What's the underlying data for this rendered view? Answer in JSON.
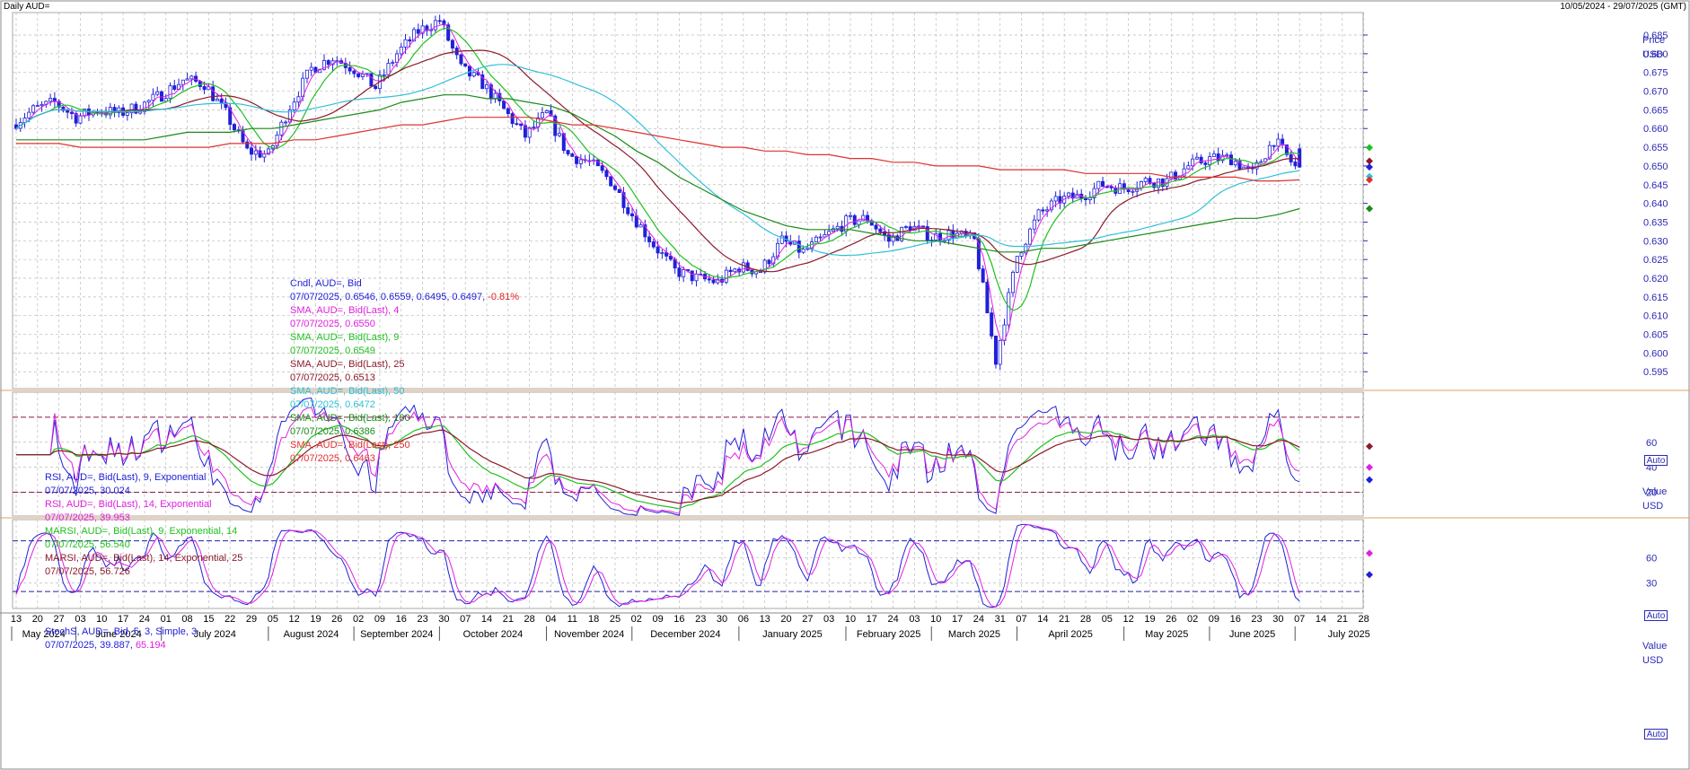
{
  "header": {
    "title": "Daily AUD=",
    "range": "10/05/2024 - 29/07/2025 (GMT)"
  },
  "colors": {
    "candle": "#2020d8",
    "sma4": "#e020e0",
    "sma9": "#20c020",
    "sma25": "#8b1a2a",
    "sma50": "#30c0d8",
    "sma100": "#1a8a1a",
    "sma250": "#e03030",
    "rsi9": "#2020d8",
    "rsi14": "#e020e0",
    "marsi9": "#20c020",
    "marsi14": "#8b1a2a",
    "stochK": "#2020d8",
    "stochD": "#e020e0",
    "grid": "#bbbbbb",
    "axis": "#2a2ab4"
  },
  "legend_price": [
    {
      "label": "Cndl, AUD=, Bid",
      "value": "07/07/2025, 0.6546, 0.6559, 0.6495, 0.6497,",
      "change": "-0.81%",
      "color": "#2020d8"
    },
    {
      "label": "SMA, AUD=, Bid(Last),  4",
      "value": "07/07/2025, 0.6550",
      "color": "#e020e0"
    },
    {
      "label": "SMA, AUD=, Bid(Last),  9",
      "value": "07/07/2025, 0.6549",
      "color": "#20c020"
    },
    {
      "label": "SMA, AUD=, Bid(Last),  25",
      "value": "07/07/2025, 0.6513",
      "color": "#8b1a2a"
    },
    {
      "label": "SMA, AUD=, Bid(Last),  50",
      "value": "07/07/2025, 0.6472",
      "color": "#30c0d8"
    },
    {
      "label": "SMA, AUD=, Bid(Last),  100",
      "value": "07/07/2025, 0.6386",
      "color": "#1a8a1a"
    },
    {
      "label": "SMA, AUD=, Bid(Last),  250",
      "value": "07/07/2025, 0.6463",
      "color": "#e03030"
    }
  ],
  "legend_rsi": [
    {
      "label": "RSI, AUD=, Bid(Last),  9, Exponential",
      "value": "07/07/2025, 30.024",
      "color": "#2020d8"
    },
    {
      "label": "RSI, AUD=, Bid(Last),  14, Exponential",
      "value": "07/07/2025, 39.953",
      "color": "#e020e0"
    },
    {
      "label": "MARSI, AUD=, Bid(Last),  9, Exponential, 14",
      "value": "07/07/2025, 56.540",
      "color": "#20c020"
    },
    {
      "label": "MARSI, AUD=, Bid(Last),  14, Exponential, 25",
      "value": "07/07/2025, 56.726",
      "color": "#8b1a2a"
    }
  ],
  "legend_stoch": {
    "label": "StochS, AUD=, Bid,  5, 3, Simple, 3",
    "value": "07/07/2025,",
    "k": "39.887",
    "d": "65.194"
  },
  "axis_labels": {
    "price_title": "Price",
    "unit": "USD",
    "value_title": "Value",
    "auto": "Auto"
  },
  "chart_data": {
    "type": "candlestick",
    "price_axis": {
      "ticks": [
        0.595,
        0.6,
        0.605,
        0.61,
        0.615,
        0.62,
        0.625,
        0.63,
        0.635,
        0.64,
        0.645,
        0.65,
        0.655,
        0.66,
        0.665,
        0.67,
        0.675,
        0.68,
        0.685
      ],
      "range": [
        0.5905,
        0.691
      ]
    },
    "rsi_axis": {
      "ticks": [
        20,
        40,
        60
      ],
      "range": [
        1,
        100
      ],
      "reference_lines": [
        20,
        80
      ]
    },
    "stoch_axis": {
      "ticks": [
        30,
        60
      ],
      "range": [
        0,
        105
      ],
      "reference_lines": [
        20,
        80
      ]
    },
    "x_ticks": [
      "13",
      "20",
      "27",
      "03",
      "10",
      "17",
      "24",
      "01",
      "08",
      "15",
      "22",
      "29",
      "05",
      "12",
      "19",
      "26",
      "02",
      "09",
      "16",
      "23",
      "30",
      "07",
      "14",
      "21",
      "28",
      "04",
      "11",
      "18",
      "25",
      "02",
      "09",
      "16",
      "23",
      "30",
      "06",
      "13",
      "20",
      "27",
      "03",
      "10",
      "17",
      "24",
      "03",
      "10",
      "17",
      "24",
      "31",
      "07",
      "14",
      "21",
      "28",
      "05",
      "12",
      "19",
      "26",
      "02",
      "09",
      "16",
      "23",
      "30",
      "07",
      "14",
      "21",
      "28"
    ],
    "months": [
      "May 2024",
      "June 2024",
      "July 2024",
      "August 2024",
      "September 2024",
      "October 2024",
      "November 2024",
      "December 2024",
      "January 2025",
      "February 2025",
      "March 2025",
      "April 2025",
      "May 2025",
      "June 2025",
      "July 2025"
    ],
    "month_tick_index": [
      0,
      3,
      7,
      12,
      16,
      20,
      25,
      29,
      34,
      39,
      43,
      47,
      52,
      56,
      60
    ],
    "weekly_close": [
      0.661,
      0.665,
      0.667,
      0.663,
      0.665,
      0.664,
      0.666,
      0.669,
      0.673,
      0.672,
      0.664,
      0.654,
      0.653,
      0.666,
      0.676,
      0.679,
      0.676,
      0.671,
      0.68,
      0.686,
      0.689,
      0.676,
      0.672,
      0.665,
      0.658,
      0.664,
      0.653,
      0.651,
      0.646,
      0.637,
      0.629,
      0.622,
      0.62,
      0.619,
      0.623,
      0.622,
      0.63,
      0.627,
      0.631,
      0.635,
      0.636,
      0.63,
      0.634,
      0.631,
      0.632,
      0.63,
      0.598,
      0.626,
      0.637,
      0.641,
      0.642,
      0.645,
      0.644,
      0.646,
      0.646,
      0.65,
      0.652,
      0.652,
      0.648,
      0.657,
      0.6497
    ],
    "sma_100_weekly": [
      0.657,
      0.657,
      0.657,
      0.657,
      0.657,
      0.657,
      0.657,
      0.658,
      0.659,
      0.659,
      0.659,
      0.66,
      0.66,
      0.661,
      0.662,
      0.663,
      0.664,
      0.665,
      0.667,
      0.668,
      0.669,
      0.669,
      0.668,
      0.668,
      0.667,
      0.666,
      0.664,
      0.661,
      0.658,
      0.654,
      0.651,
      0.647,
      0.644,
      0.641,
      0.638,
      0.636,
      0.634,
      0.633,
      0.633,
      0.633,
      0.632,
      0.631,
      0.63,
      0.63,
      0.629,
      0.628,
      0.627,
      0.627,
      0.628,
      0.628,
      0.629,
      0.63,
      0.631,
      0.632,
      0.633,
      0.634,
      0.635,
      0.636,
      0.636,
      0.637,
      0.6386
    ],
    "sma_250_weekly": [
      0.656,
      0.656,
      0.656,
      0.655,
      0.655,
      0.655,
      0.655,
      0.655,
      0.655,
      0.655,
      0.656,
      0.656,
      0.656,
      0.657,
      0.657,
      0.658,
      0.659,
      0.66,
      0.661,
      0.661,
      0.662,
      0.663,
      0.663,
      0.663,
      0.663,
      0.662,
      0.661,
      0.661,
      0.66,
      0.659,
      0.658,
      0.657,
      0.656,
      0.655,
      0.655,
      0.654,
      0.654,
      0.653,
      0.653,
      0.652,
      0.652,
      0.651,
      0.651,
      0.65,
      0.65,
      0.65,
      0.649,
      0.649,
      0.649,
      0.649,
      0.648,
      0.648,
      0.648,
      0.648,
      0.647,
      0.647,
      0.647,
      0.647,
      0.646,
      0.646,
      0.6463
    ]
  }
}
